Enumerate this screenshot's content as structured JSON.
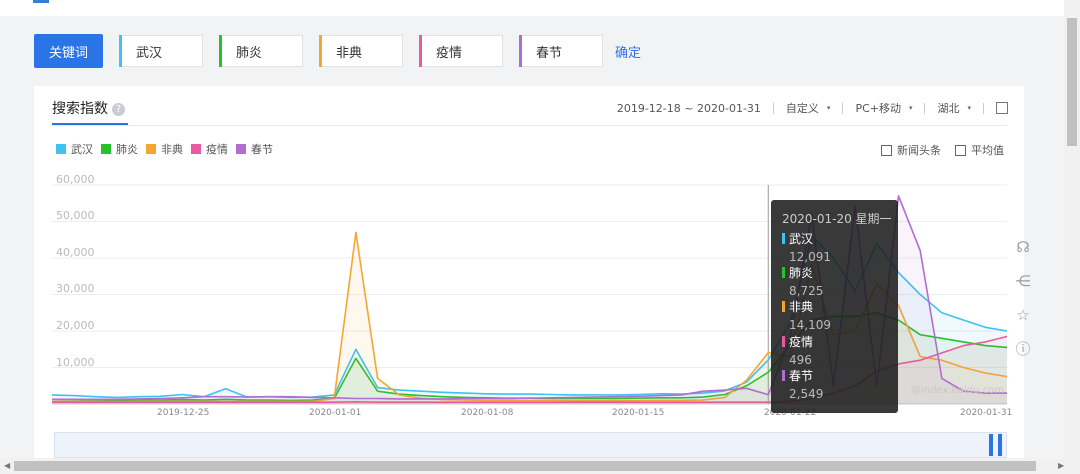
{
  "keywords": {
    "button": "关键词",
    "confirm": "确定",
    "chips": [
      {
        "label": "武汉",
        "color": "#3ec1f3"
      },
      {
        "label": "肺炎",
        "color": "#27c22a"
      },
      {
        "label": "非典",
        "color": "#f7a531"
      },
      {
        "label": "疫情",
        "color": "#ea5a9e"
      },
      {
        "label": "春节",
        "color": "#b26dd0"
      }
    ]
  },
  "tab": {
    "title": "搜索指数",
    "help": "?"
  },
  "filters": {
    "daterange": "2019-12-18 ~ 2020-01-31",
    "custom": "自定义",
    "device": "PC+移动",
    "region": "湖北",
    "arrow": "▾"
  },
  "options": {
    "news": "新闻头条",
    "avg": "平均值"
  },
  "tooltip": {
    "date": "2020-01-20 星期一",
    "items": [
      {
        "name": "武汉",
        "value": "12,091",
        "color": "#3ec1f3"
      },
      {
        "name": "肺炎",
        "value": "8,725",
        "color": "#27c22a"
      },
      {
        "name": "非典",
        "value": "14,109",
        "color": "#f7a531"
      },
      {
        "name": "疫情",
        "value": "496",
        "color": "#ea5a9e"
      },
      {
        "name": "春节",
        "value": "2,549",
        "color": "#b26dd0"
      }
    ]
  },
  "watermark": "@index.baidu.com",
  "chart_data": {
    "type": "line",
    "ylim": [
      0,
      60000
    ],
    "yticks": [
      "60,000",
      "50,000",
      "40,000",
      "30,000",
      "20,000",
      "10,000"
    ],
    "x_labels": [
      "2019-12-25",
      "2020-01-01",
      "2020-01-08",
      "2020-01-15",
      "2020-01-22",
      "2020-01-31"
    ],
    "x": [
      "12-18",
      "12-19",
      "12-20",
      "12-21",
      "12-22",
      "12-23",
      "12-24",
      "12-25",
      "12-26",
      "12-27",
      "12-28",
      "12-29",
      "12-30",
      "12-31",
      "01-01",
      "01-02",
      "01-03",
      "01-04",
      "01-05",
      "01-06",
      "01-07",
      "01-08",
      "01-09",
      "01-10",
      "01-11",
      "01-12",
      "01-13",
      "01-14",
      "01-15",
      "01-16",
      "01-17",
      "01-18",
      "01-19",
      "01-20",
      "01-21",
      "01-22",
      "01-23",
      "01-24",
      "01-25",
      "01-26",
      "01-27",
      "01-28",
      "01-29",
      "01-30",
      "01-31"
    ],
    "series": [
      {
        "name": "武汉",
        "color": "#3ec1f3",
        "values": [
          2500,
          2300,
          2000,
          1800,
          2000,
          2100,
          2600,
          2000,
          4200,
          1900,
          2000,
          1800,
          1900,
          2500,
          15000,
          4500,
          3800,
          3500,
          3200,
          3000,
          2800,
          2700,
          2700,
          2600,
          2500,
          2500,
          2500,
          2600,
          2800,
          2700,
          3000,
          3600,
          6000,
          12091,
          22000,
          46000,
          40000,
          31000,
          44000,
          36000,
          30000,
          25000,
          23000,
          21000,
          20000
        ]
      },
      {
        "name": "肺炎",
        "color": "#27c22a",
        "values": [
          1300,
          1200,
          1100,
          1000,
          1100,
          1100,
          1200,
          1100,
          1300,
          1100,
          1100,
          1000,
          1100,
          1500,
          12500,
          3500,
          2700,
          2300,
          2000,
          1800,
          1700,
          1600,
          1600,
          1500,
          1500,
          1500,
          1500,
          1600,
          1700,
          1700,
          1900,
          2600,
          5000,
          8725,
          16000,
          23000,
          24000,
          24000,
          25000,
          23000,
          19000,
          18000,
          17000,
          16000,
          15500
        ]
      },
      {
        "name": "非典",
        "color": "#f7a531",
        "values": [
          700,
          700,
          700,
          650,
          700,
          700,
          700,
          700,
          700,
          700,
          700,
          700,
          700,
          1500,
          47000,
          7000,
          2500,
          1600,
          1200,
          1100,
          1000,
          1000,
          950,
          950,
          900,
          900,
          900,
          950,
          1000,
          1000,
          1100,
          1800,
          6500,
          14109,
          13000,
          38000,
          19000,
          20000,
          33000,
          27000,
          13000,
          12000,
          10000,
          8500,
          7500
        ]
      },
      {
        "name": "疫情",
        "color": "#ea5a9e",
        "values": [
          500,
          500,
          500,
          500,
          500,
          500,
          500,
          500,
          500,
          500,
          500,
          500,
          500,
          500,
          600,
          500,
          500,
          500,
          500,
          500,
          500,
          500,
          500,
          500,
          500,
          500,
          500,
          500,
          500,
          500,
          500,
          500,
          500,
          496,
          700,
          1500,
          3000,
          5000,
          9000,
          11000,
          12000,
          14000,
          16000,
          17000,
          18500
        ]
      },
      {
        "name": "春节",
        "color": "#b26dd0",
        "values": [
          1300,
          1300,
          1300,
          1300,
          1400,
          1500,
          1700,
          2000,
          2000,
          1900,
          2000,
          2000,
          1800,
          1700,
          1500,
          1500,
          1400,
          1400,
          1400,
          1500,
          1500,
          1500,
          1600,
          1700,
          1800,
          1900,
          2000,
          2100,
          2300,
          2500,
          3500,
          3800,
          4300,
          2549,
          18000,
          52000,
          5000,
          54000,
          5000,
          57000,
          42000,
          7000,
          3500,
          3000,
          3000
        ]
      }
    ]
  }
}
